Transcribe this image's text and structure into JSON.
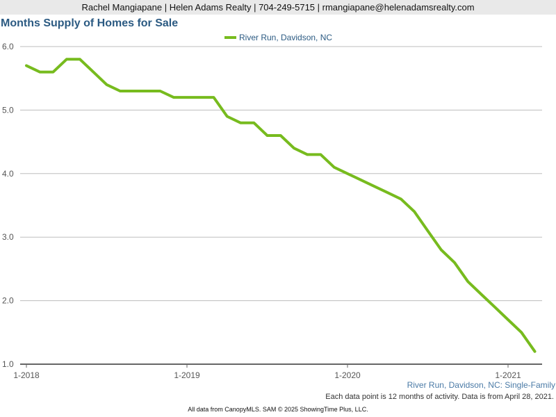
{
  "header": {
    "contact": "Rachel Mangiapane | Helen Adams Realty | 704-249-5715 | rmangiapane@helenadamsrealty.com"
  },
  "colors": {
    "series": "#77bb1e",
    "title": "#2b5a82",
    "grid": "#bdbdbd"
  },
  "chart_data": {
    "type": "line",
    "title": "Months Supply of Homes for Sale",
    "subtitle": "River Run, Davidson, NC: Single-Family",
    "legend": "top-center",
    "grid": true,
    "ylim": [
      1.0,
      6.0
    ],
    "yticks": [
      "6.0",
      "5.0",
      "4.0",
      "3.0",
      "2.0",
      "1.0"
    ],
    "xticks": [
      "1-2018",
      "1-2019",
      "1-2020",
      "1-2021"
    ],
    "x": [
      "1-2018",
      "2-2018",
      "3-2018",
      "4-2018",
      "5-2018",
      "6-2018",
      "7-2018",
      "8-2018",
      "9-2018",
      "10-2018",
      "11-2018",
      "12-2018",
      "1-2019",
      "2-2019",
      "3-2019",
      "4-2019",
      "5-2019",
      "6-2019",
      "7-2019",
      "8-2019",
      "9-2019",
      "10-2019",
      "11-2019",
      "12-2019",
      "1-2020",
      "2-2020",
      "3-2020",
      "4-2020",
      "5-2020",
      "6-2020",
      "7-2020",
      "8-2020",
      "9-2020",
      "10-2020",
      "11-2020",
      "12-2020",
      "1-2021",
      "2-2021",
      "3-2021"
    ],
    "series": [
      {
        "name": "River Run, Davidson, NC",
        "values": [
          5.7,
          5.6,
          5.6,
          5.8,
          5.8,
          5.6,
          5.4,
          5.3,
          5.3,
          5.3,
          5.3,
          5.2,
          5.2,
          5.2,
          5.2,
          4.9,
          4.8,
          4.8,
          4.6,
          4.6,
          4.4,
          4.3,
          4.3,
          4.1,
          4.0,
          3.9,
          3.8,
          3.7,
          3.6,
          3.4,
          3.1,
          2.8,
          2.6,
          2.3,
          2.1,
          1.9,
          1.7,
          1.5,
          1.2
        ]
      }
    ]
  },
  "note": "Each data point is 12 months of activity. Data is from April 28, 2021.",
  "footer": "All data from CanopyMLS. SAM © 2025 ShowingTime Plus, LLC."
}
